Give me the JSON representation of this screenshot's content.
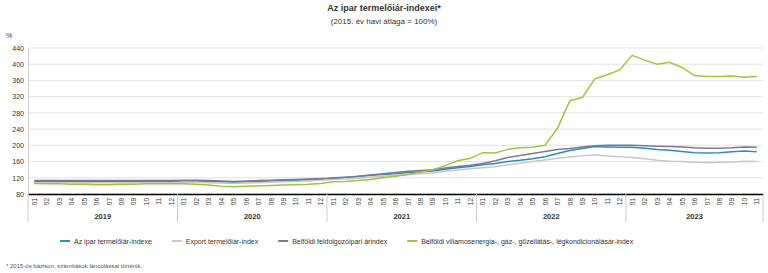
{
  "chart_data": {
    "type": "line",
    "title": "Az ipar termelőiár-indexei*",
    "subtitle": "(2015. év havi átlaga = 100%)",
    "y_label": "%",
    "note": "* 2015-ös bázison, számításuk láncolással történik.",
    "categories": [
      "01",
      "02",
      "03",
      "04",
      "05",
      "06",
      "07",
      "08",
      "09",
      "10",
      "11",
      "12",
      "01",
      "02",
      "03",
      "04",
      "05",
      "06",
      "07",
      "08",
      "09",
      "10",
      "11",
      "12",
      "01",
      "02",
      "03",
      "04",
      "05",
      "06",
      "07",
      "08",
      "09",
      "10",
      "11",
      "12",
      "01",
      "02",
      "03",
      "04",
      "05",
      "06",
      "07",
      "08",
      "09",
      "10",
      "11",
      "12",
      "01",
      "02",
      "03",
      "04",
      "05",
      "06",
      "07",
      "08",
      "09",
      "10",
      "11"
    ],
    "x_groups": [
      "2019",
      "2020",
      "2021",
      "2022",
      "2023"
    ],
    "ylim": [
      80,
      440
    ],
    "yticks": [
      80,
      120,
      160,
      200,
      240,
      280,
      320,
      360,
      400,
      440
    ],
    "grid": true,
    "legend": "bottom",
    "series": [
      {
        "name": "Az ipar termelőiár-indexe",
        "color": "#2a8fb8",
        "values": [
          111,
          111,
          111,
          111,
          111,
          111,
          111,
          111,
          111,
          111,
          111,
          111,
          112,
          112,
          111,
          110,
          109,
          110,
          111,
          112,
          113,
          114,
          115,
          116,
          120,
          121,
          123,
          126,
          128,
          130,
          133,
          135,
          137,
          141,
          145,
          148,
          152,
          155,
          160,
          163,
          167,
          172,
          180,
          187,
          192,
          197,
          196,
          195,
          195,
          193,
          190,
          188,
          185,
          182,
          181,
          182,
          184,
          186,
          184
        ]
      },
      {
        "name": "Export termelőiár-index",
        "color": "#c8c8c8",
        "values": [
          108,
          108,
          108,
          108,
          108,
          108,
          108,
          108,
          108,
          108,
          108,
          108,
          109,
          109,
          108,
          107,
          106,
          107,
          108,
          109,
          110,
          111,
          112,
          114,
          116,
          117,
          119,
          122,
          124,
          126,
          128,
          130,
          132,
          136,
          139,
          142,
          145,
          147,
          152,
          156,
          160,
          164,
          168,
          171,
          174,
          177,
          174,
          172,
          170,
          167,
          163,
          161,
          160,
          158,
          157,
          158,
          159,
          161,
          160
        ]
      },
      {
        "name": "Belföldi feldolgozóipari árindex",
        "color": "#7d7897",
        "values": [
          113,
          113,
          113,
          113,
          113,
          113,
          113,
          113,
          113,
          113,
          113,
          113,
          114,
          114,
          113,
          112,
          111,
          112,
          113,
          114,
          115,
          116,
          117,
          118,
          119,
          121,
          124,
          127,
          130,
          133,
          136,
          138,
          140,
          144,
          148,
          151,
          155,
          162,
          170,
          175,
          180,
          185,
          190,
          192,
          196,
          199,
          200,
          200,
          200,
          199,
          198,
          197,
          196,
          194,
          193,
          193,
          194,
          196,
          195
        ]
      },
      {
        "name": "Belföldi villamosenergia-, gáz-, gőzellátás-, légkondicionálásár-index",
        "color": "#a3c43a",
        "values": [
          106,
          105,
          105,
          104,
          104,
          103,
          103,
          104,
          104,
          105,
          105,
          105,
          105,
          104,
          102,
          99,
          98,
          99,
          100,
          101,
          102,
          103,
          104,
          106,
          110,
          111,
          113,
          116,
          120,
          124,
          128,
          134,
          140,
          150,
          162,
          168,
          182,
          181,
          190,
          194,
          195,
          200,
          242,
          310,
          318,
          364,
          374,
          386,
          422,
          410,
          400,
          405,
          392,
          372,
          370,
          370,
          371,
          368,
          370
        ]
      }
    ]
  }
}
